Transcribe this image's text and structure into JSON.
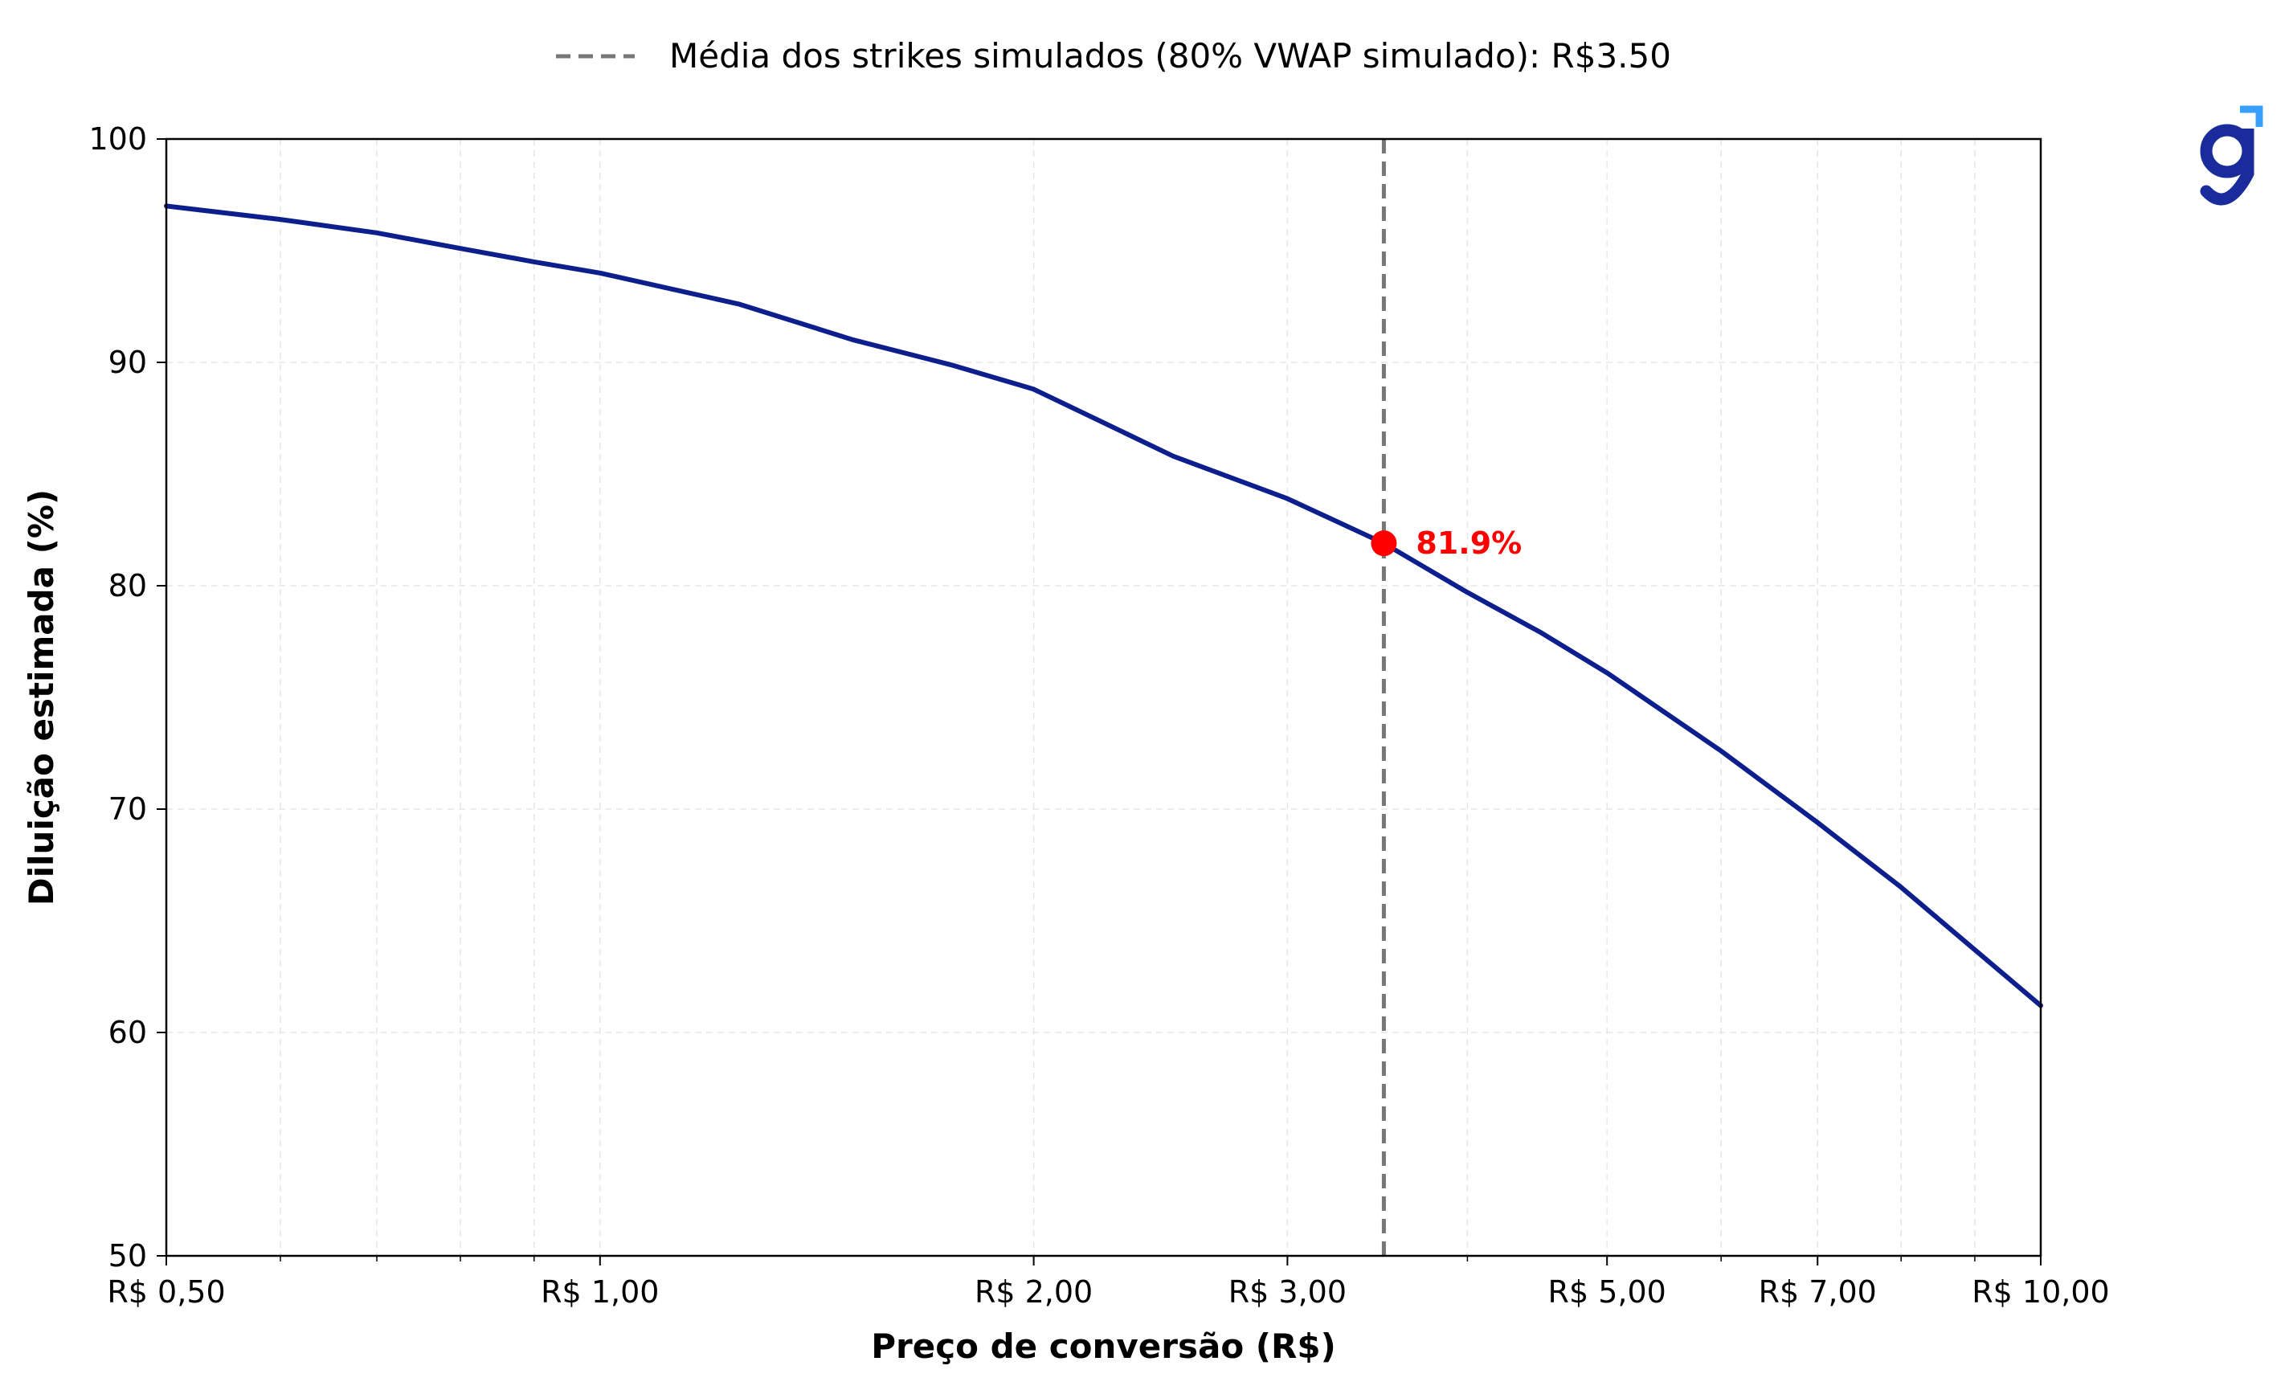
{
  "chart_data": {
    "type": "line",
    "xscale": "log",
    "xlim": [
      0.5,
      10.0
    ],
    "ylim": [
      50,
      100
    ],
    "xlabel": "Preço de conversão (R$)",
    "ylabel": "Diluição estimada (%)",
    "x_ticks": [
      {
        "value": 0.5,
        "label": "R$ 0,50"
      },
      {
        "value": 1.0,
        "label": "R$ 1,00"
      },
      {
        "value": 2.0,
        "label": "R$ 2,00"
      },
      {
        "value": 3.0,
        "label": "R$ 3,00"
      },
      {
        "value": 5.0,
        "label": "R$ 5,00"
      },
      {
        "value": 7.0,
        "label": "R$ 7,00"
      },
      {
        "value": 10.0,
        "label": "R$ 10,00"
      }
    ],
    "y_ticks": [
      {
        "value": 50,
        "label": "50"
      },
      {
        "value": 60,
        "label": "60"
      },
      {
        "value": 70,
        "label": "70"
      },
      {
        "value": 80,
        "label": "80"
      },
      {
        "value": 90,
        "label": "90"
      },
      {
        "value": 100,
        "label": "100"
      }
    ],
    "grid": true,
    "legend_position": "top-center",
    "series": [
      {
        "color": "#0d1f8c",
        "x": [
          0.5,
          0.6,
          0.7,
          0.8,
          0.9,
          1.0,
          1.25,
          1.5,
          1.75,
          2.0,
          2.5,
          3.0,
          3.5,
          4.0,
          4.5,
          5.0,
          6.0,
          7.0,
          8.0,
          9.0,
          10.0
        ],
        "y": [
          97.0,
          96.4,
          95.8,
          95.1,
          94.5,
          94.0,
          92.6,
          91.0,
          89.9,
          88.8,
          85.8,
          83.9,
          81.9,
          79.7,
          77.9,
          76.1,
          72.6,
          69.4,
          66.5,
          63.7,
          61.2
        ]
      }
    ],
    "reference_line": {
      "x": 3.5,
      "color": "#777777",
      "style": "dashed",
      "legend_label": "Média dos strikes simulados (80% VWAP simulado): R$3.50"
    },
    "highlight_point": {
      "x": 3.5,
      "y": 81.9,
      "label": "81.9%",
      "color": "#ff0000"
    }
  },
  "logo": {
    "color": "#1a2b9c",
    "accent_color": "#3aa0ff",
    "icon": "g-logo-icon"
  }
}
